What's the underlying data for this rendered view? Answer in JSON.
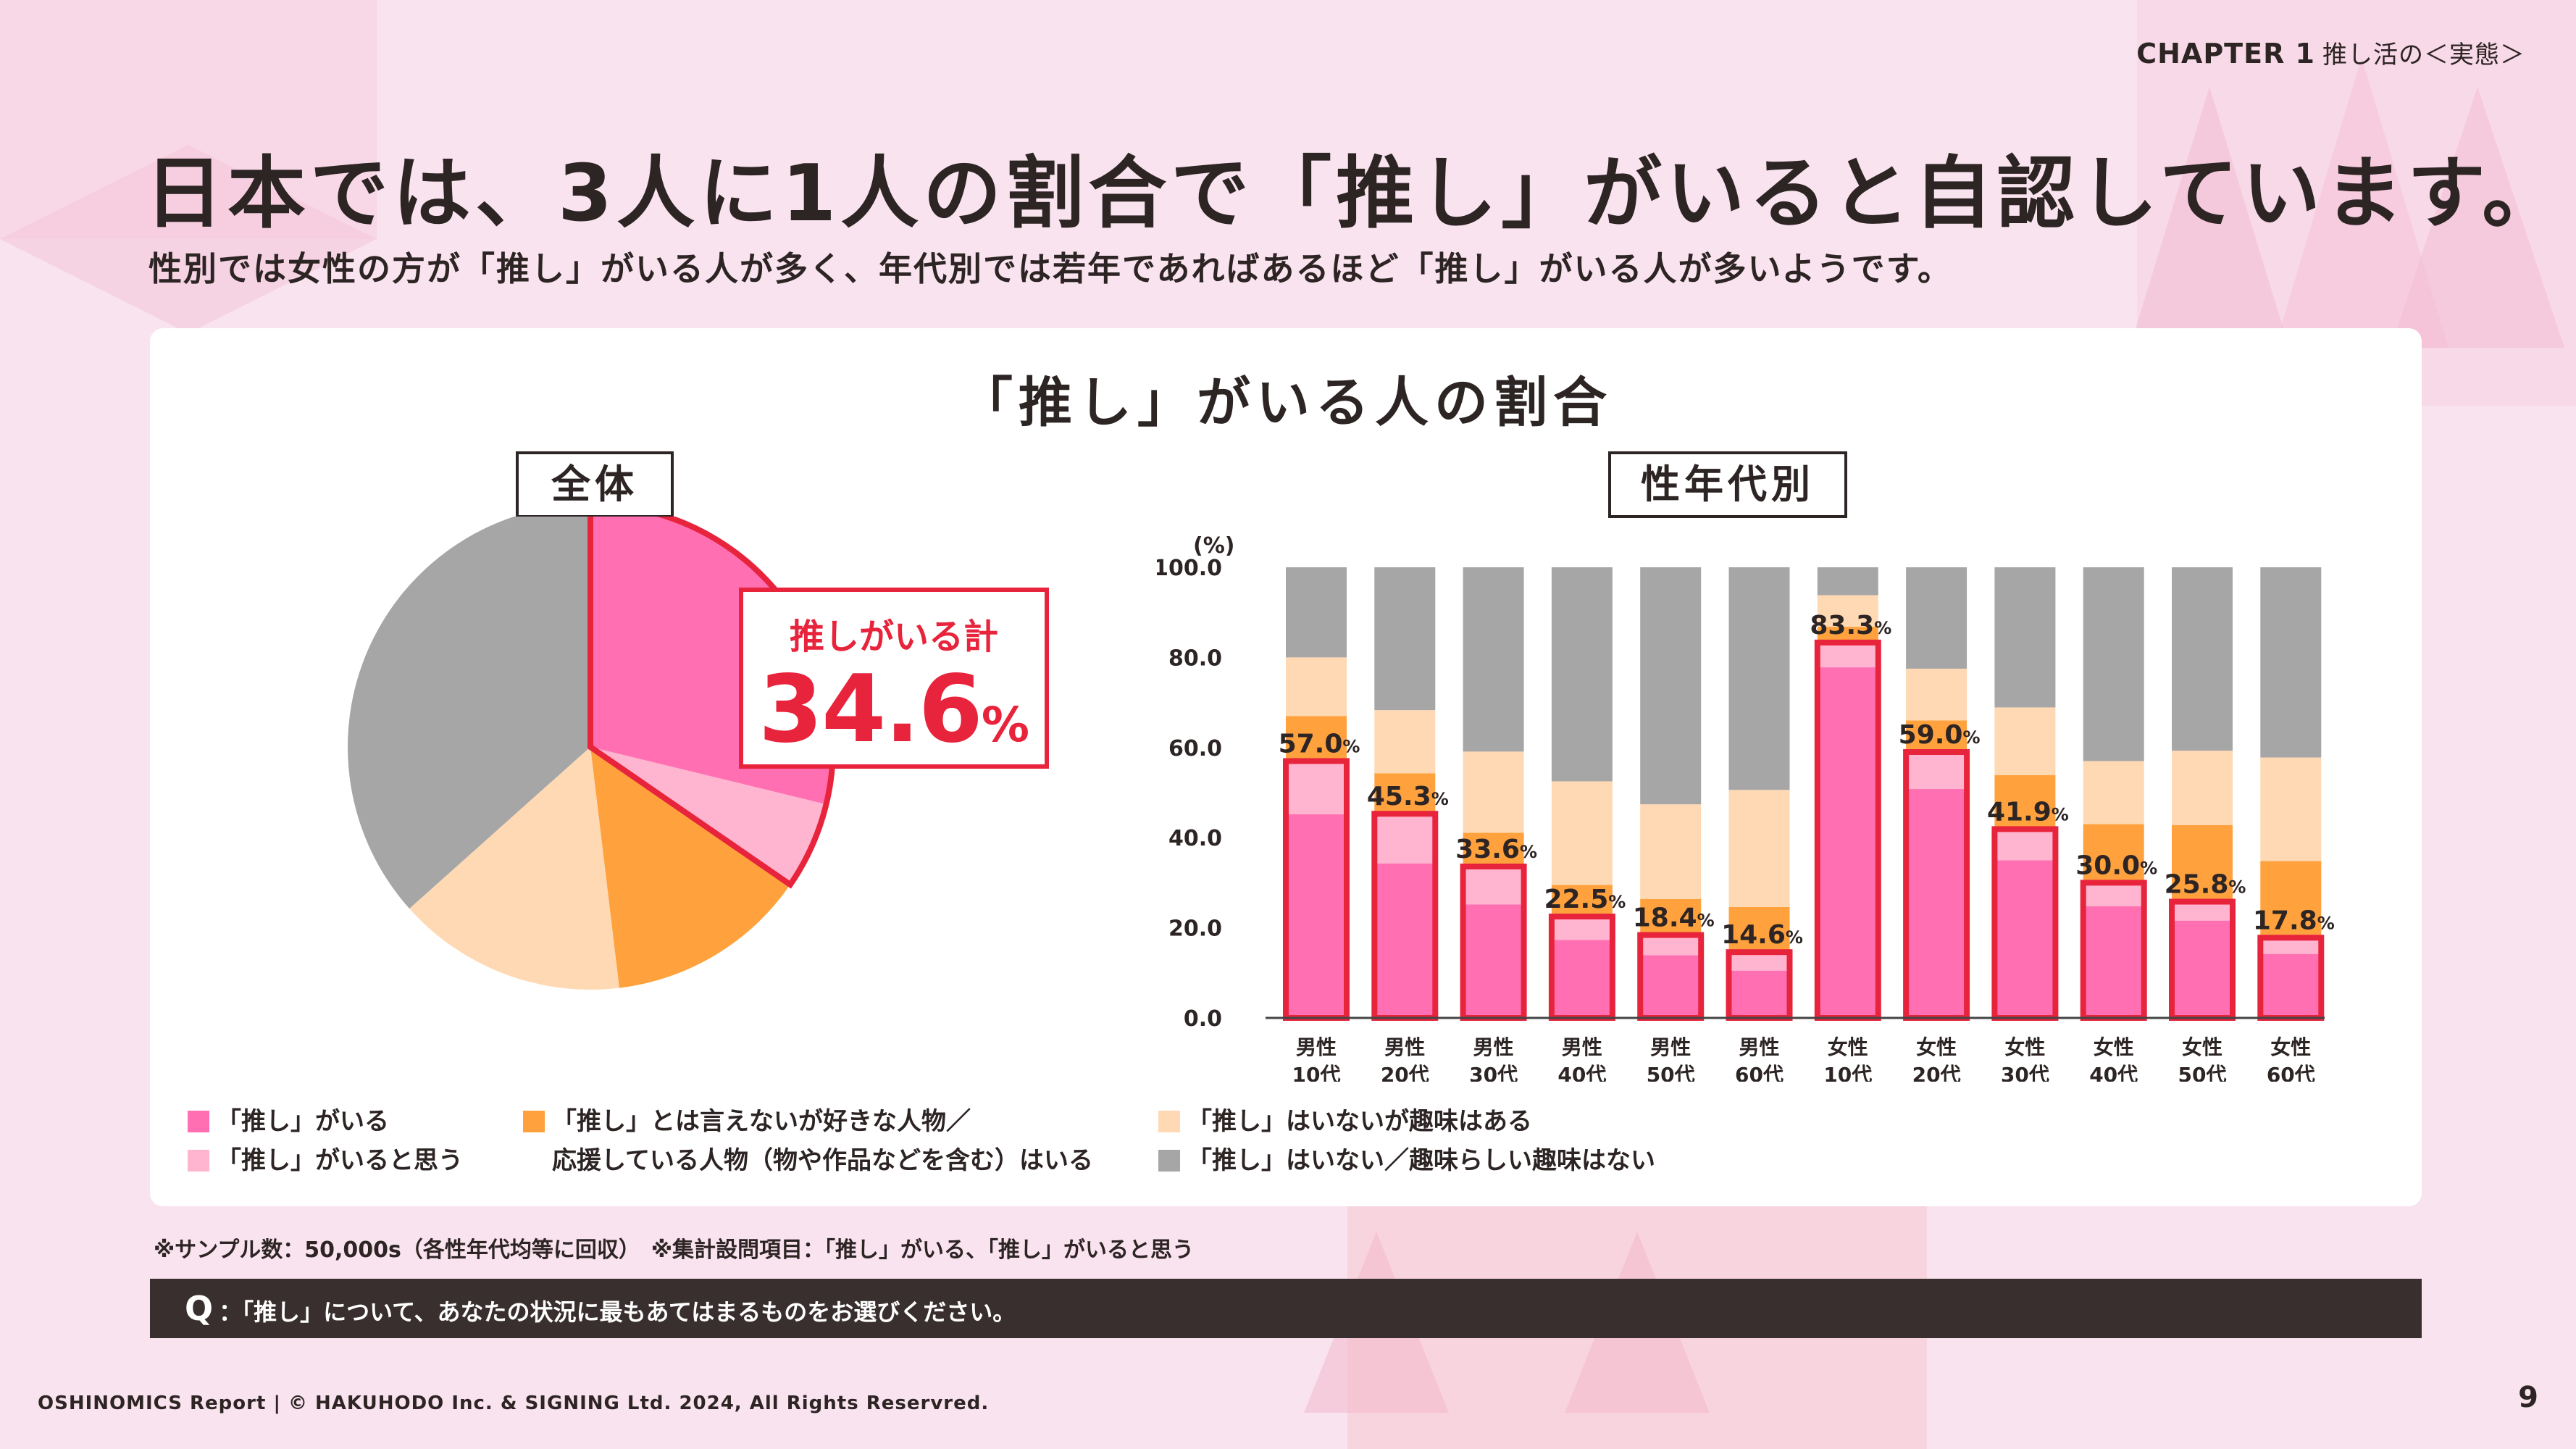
{
  "header": {
    "chapter": "CHAPTER 1",
    "chapter_sub": "推し活の＜実態＞"
  },
  "title": "日本では、3人に1人の割合で「推し」がいると自認しています。",
  "subtitle": "性別では女性の方が「推し」がいる人が多く、年代別では若年であればあるほど「推し」がいる人が多いようです。",
  "colors": {
    "oshi": "#ff6fb2",
    "think": "#ffb4cf",
    "like": "#ffa13d",
    "hobby": "#ffd9b3",
    "none": "#a6a6a6",
    "highlight": "#e8233c",
    "dark": "#2d2424"
  },
  "chart_data": [
    {
      "type": "pie",
      "title": "「推し」がいる人の割合",
      "panel_label": "全体",
      "slices": [
        {
          "name": "「推し」がいる",
          "value": 28.8
        },
        {
          "name": "「推し」がいると思う",
          "value": 5.8
        },
        {
          "name": "「推し」とは言えないが好きな人物／応援している人物（物や作品などを含む）はいる",
          "value": 13.5
        },
        {
          "name": "「推し」はいないが趣味はある",
          "value": 15.3
        },
        {
          "name": "「推し」はいない／趣味らしい趣味はない",
          "value": 36.6
        }
      ],
      "callout_label": "推しがいる計",
      "callout_value": "34.6",
      "callout_unit": "%"
    },
    {
      "type": "bar",
      "stacked": true,
      "panel_label": "性年代別",
      "ylabel": "(%)",
      "ylim": [
        0,
        100
      ],
      "yticks": [
        "0.0",
        "20.0",
        "40.0",
        "60.0",
        "80.0",
        "100.0"
      ],
      "categories": [
        [
          "男性",
          "10代"
        ],
        [
          "男性",
          "20代"
        ],
        [
          "男性",
          "30代"
        ],
        [
          "男性",
          "40代"
        ],
        [
          "男性",
          "50代"
        ],
        [
          "男性",
          "60代"
        ],
        [
          "女性",
          "10代"
        ],
        [
          "女性",
          "20代"
        ],
        [
          "女性",
          "30代"
        ],
        [
          "女性",
          "40代"
        ],
        [
          "女性",
          "50代"
        ],
        [
          "女性",
          "60代"
        ]
      ],
      "series": [
        {
          "name": "「推し」がいる",
          "values": [
            45.2,
            34.3,
            25.2,
            17.3,
            13.9,
            10.5,
            77.8,
            50.8,
            35.0,
            24.8,
            21.6,
            14.2
          ]
        },
        {
          "name": "「推し」がいると思う",
          "values": [
            11.8,
            11.0,
            8.4,
            5.2,
            4.5,
            4.1,
            5.5,
            8.2,
            6.9,
            5.2,
            4.2,
            3.6
          ]
        },
        {
          "name": "「推し」とは言えないが好きな人物／応援している人物（物や作品などを含む）はいる",
          "values": [
            10.0,
            9.0,
            7.5,
            7.0,
            8.0,
            10.0,
            3.5,
            7.0,
            12.0,
            13.0,
            17.0,
            17.0
          ]
        },
        {
          "name": "「推し」はいないが趣味はある",
          "values": [
            13.0,
            14.0,
            18.0,
            23.0,
            21.0,
            26.0,
            7.0,
            11.5,
            15.0,
            14.0,
            16.5,
            23.0
          ]
        },
        {
          "name": "「推し」はいない／趣味らしい趣味はない",
          "values": [
            20.0,
            31.7,
            40.9,
            47.5,
            52.6,
            49.4,
            6.2,
            22.5,
            31.1,
            43.0,
            40.7,
            42.2
          ]
        }
      ],
      "totals_label": [
        "57.0",
        "45.3",
        "33.6",
        "22.5",
        "18.4",
        "14.6",
        "83.3",
        "59.0",
        "41.9",
        "30.0",
        "25.8",
        "17.8"
      ],
      "unit": "%"
    }
  ],
  "legend": {
    "oshi": "「推し」がいる",
    "think": "「推し」がいると思う",
    "like_line1": "「推し」とは言えないが好きな人物／",
    "like_line2": "応援している人物（物や作品などを含む）はいる",
    "hobby": "「推し」はいないが趣味はある",
    "none": "「推し」はいない／趣味らしい趣味はない"
  },
  "note": "※サンプル数：50,000s（各性年代均等に回収）　※集計設問項目：「推し」がいる、「推し」がいると思う",
  "question": {
    "label": "Q",
    "text": "：「推し」について、あなたの状況に最もあてはまるものをお選びください。"
  },
  "footer": "OSHINOMICS Report | © HAKUHODO Inc. & SIGNING Ltd. 2024, All Rights Reservred.",
  "page_number": "9"
}
